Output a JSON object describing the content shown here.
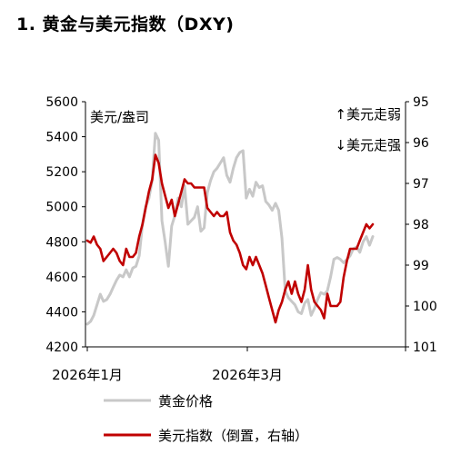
{
  "chart_data": {
    "type": "line",
    "title": "1. 黄金与美元指数（DXY)",
    "x_tick_labels": [
      "2026年1月",
      "2026年3月"
    ],
    "annotations": {
      "left_axis_note": "美元/盎司",
      "top_right_note": "↑美元走弱",
      "bottom_right_note": "↓美元走强"
    },
    "left_axis": {
      "ticks": [
        4200,
        4400,
        4600,
        4800,
        5000,
        5200,
        5400,
        5600
      ],
      "range": [
        4200,
        5600
      ]
    },
    "right_axis": {
      "ticks": [
        95,
        96,
        97,
        98,
        99,
        100,
        101
      ],
      "range": [
        95,
        101
      ],
      "inverted": true
    },
    "grid": false,
    "legend_placement": "bottom",
    "series": [
      {
        "name": "黄金价格",
        "axis": "left",
        "color": "#c8c8c8",
        "values": [
          4330,
          4345,
          4380,
          4440,
          4500,
          4460,
          4470,
          4500,
          4540,
          4580,
          4610,
          4600,
          4640,
          4600,
          4650,
          4660,
          4720,
          4900,
          5000,
          5050,
          5150,
          5420,
          5380,
          4920,
          4800,
          4660,
          4890,
          4950,
          5050,
          5000,
          5120,
          4900,
          4920,
          4940,
          5000,
          4860,
          4880,
          5080,
          5150,
          5200,
          5220,
          5250,
          5280,
          5180,
          5140,
          5220,
          5280,
          5310,
          5320,
          5050,
          5100,
          5060,
          5140,
          5110,
          5120,
          5030,
          5010,
          4980,
          5020,
          4980,
          4820,
          4520,
          4480,
          4460,
          4440,
          4400,
          4390,
          4450,
          4470,
          4380,
          4420,
          4470,
          4510,
          4500,
          4520,
          4600,
          4700,
          4710,
          4700,
          4680,
          4700,
          4720,
          4760,
          4770,
          4740,
          4800,
          4830,
          4780,
          4830
        ]
      },
      {
        "name": "美元指数（倒置，右轴）",
        "axis": "right",
        "color": "#c00000",
        "values": [
          98.4,
          98.45,
          98.3,
          98.5,
          98.6,
          98.9,
          98.8,
          98.7,
          98.6,
          98.7,
          98.9,
          99.0,
          98.6,
          98.8,
          98.8,
          98.7,
          98.3,
          98.0,
          97.6,
          97.2,
          96.9,
          96.3,
          96.5,
          97.0,
          97.3,
          97.6,
          97.4,
          97.8,
          97.5,
          97.2,
          96.9,
          97.0,
          97.0,
          97.1,
          97.1,
          97.1,
          97.1,
          97.6,
          97.7,
          97.8,
          97.7,
          97.8,
          97.8,
          97.7,
          98.2,
          98.4,
          98.5,
          98.7,
          99.0,
          99.1,
          98.8,
          99.0,
          98.8,
          99.0,
          99.2,
          99.5,
          99.8,
          100.1,
          100.4,
          100.1,
          99.9,
          99.6,
          99.4,
          99.7,
          99.4,
          99.7,
          99.9,
          99.6,
          99.0,
          99.6,
          99.9,
          100.0,
          100.1,
          100.3,
          99.7,
          100.0,
          100.0,
          100.0,
          99.9,
          99.3,
          98.9,
          98.6,
          98.6,
          98.6,
          98.4,
          98.2,
          98.0,
          98.1,
          98.0
        ]
      }
    ]
  }
}
